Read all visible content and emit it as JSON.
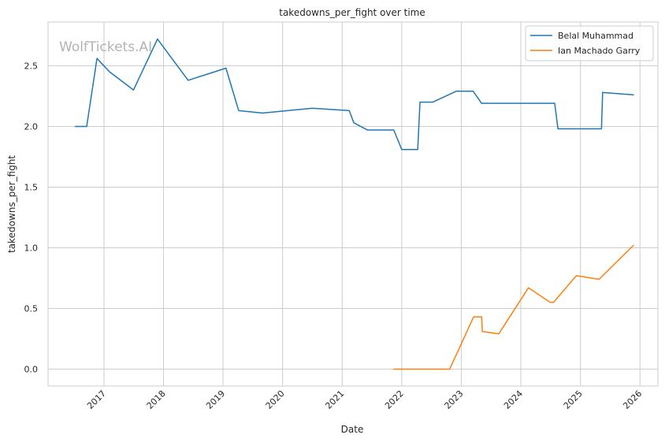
{
  "chart_data": {
    "type": "line",
    "title": "takedowns_per_fight over time",
    "xlabel": "Date",
    "ylabel": "takedowns_per_fight",
    "watermark": "WolfTickets.AI",
    "xlim": [
      "2016-01-24",
      "2026-04-21"
    ],
    "ylim": [
      -0.14,
      2.86
    ],
    "x_ticks": [
      "2017-01-01",
      "2018-01-01",
      "2019-01-01",
      "2020-01-01",
      "2021-01-01",
      "2022-01-01",
      "2023-01-01",
      "2024-01-01",
      "2025-01-01",
      "2026-01-01"
    ],
    "x_tick_labels": [
      "2017",
      "2018",
      "2019",
      "2020",
      "2021",
      "2022",
      "2023",
      "2024",
      "2025",
      "2026"
    ],
    "y_ticks": [
      0.0,
      0.5,
      1.0,
      1.5,
      2.0,
      2.5
    ],
    "y_tick_labels": [
      "0.0",
      "0.5",
      "1.0",
      "1.5",
      "2.0",
      "2.5"
    ],
    "grid": true,
    "legend_position": "top-right",
    "series": [
      {
        "name": "Belal Muhammad",
        "color": "#1f77b4",
        "points": [
          [
            "2016-07-09",
            2.0
          ],
          [
            "2016-09-17",
            2.0
          ],
          [
            "2016-11-19",
            2.56
          ],
          [
            "2017-02-04",
            2.45
          ],
          [
            "2017-07-01",
            2.3
          ],
          [
            "2017-11-25",
            2.72
          ],
          [
            "2018-06-01",
            2.38
          ],
          [
            "2019-01-19",
            2.48
          ],
          [
            "2019-04-07",
            2.13
          ],
          [
            "2019-08-31",
            2.11
          ],
          [
            "2020-07-01",
            2.15
          ],
          [
            "2021-02-13",
            2.13
          ],
          [
            "2021-03-13",
            2.03
          ],
          [
            "2021-06-05",
            1.97
          ],
          [
            "2021-11-13",
            1.97
          ],
          [
            "2022-01-01",
            1.81
          ],
          [
            "2022-04-09",
            1.81
          ],
          [
            "2022-04-23",
            2.2
          ],
          [
            "2022-07-10",
            2.2
          ],
          [
            "2022-12-01",
            2.29
          ],
          [
            "2023-03-15",
            2.29
          ],
          [
            "2023-05-06",
            2.19
          ],
          [
            "2024-07-27",
            2.19
          ],
          [
            "2024-08-16",
            1.98
          ],
          [
            "2025-05-10",
            1.98
          ],
          [
            "2025-05-17",
            2.28
          ],
          [
            "2025-11-22",
            2.26
          ]
        ]
      },
      {
        "name": "Ian Machado Garry",
        "color": "#ff7f0e",
        "points": [
          [
            "2021-11-13",
            0.0
          ],
          [
            "2022-10-22",
            0.0
          ],
          [
            "2023-03-18",
            0.43
          ],
          [
            "2023-05-06",
            0.43
          ],
          [
            "2023-05-10",
            0.31
          ],
          [
            "2023-08-19",
            0.29
          ],
          [
            "2024-02-17",
            0.67
          ],
          [
            "2024-06-29",
            0.55
          ],
          [
            "2024-07-20",
            0.55
          ],
          [
            "2024-12-07",
            0.77
          ],
          [
            "2025-04-25",
            0.74
          ],
          [
            "2025-11-22",
            1.02
          ]
        ]
      }
    ]
  }
}
